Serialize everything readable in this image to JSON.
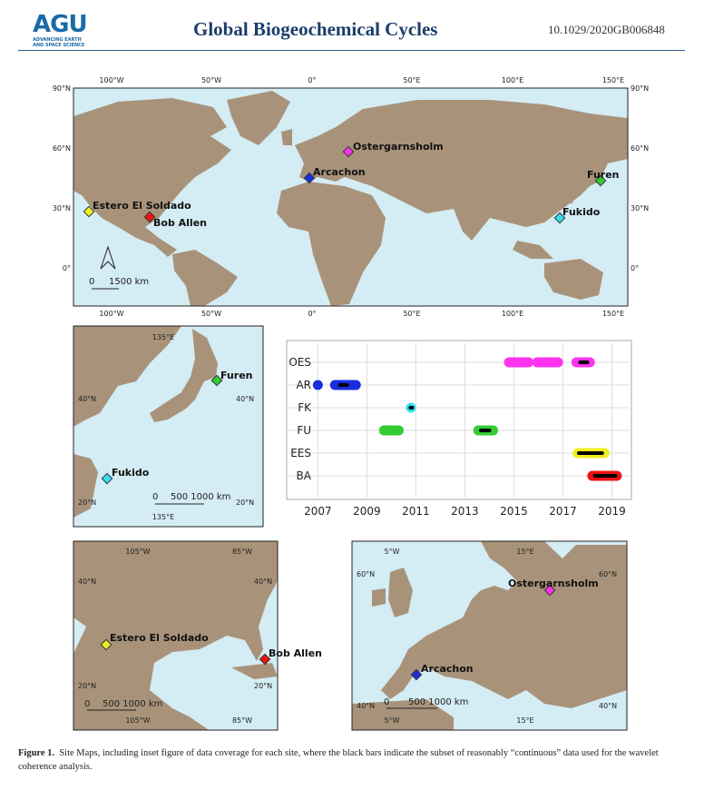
{
  "header": {
    "logo": "AGU",
    "logo_sub": "ADVANCING EARTH AND SPACE SCIENCE",
    "journal": "Global Biogeochemical Cycles",
    "doi": "10.1029/2020GB006848"
  },
  "world_map": {
    "lon_labels": [
      "100°W",
      "50°W",
      "0°",
      "50°E",
      "100°E",
      "150°E"
    ],
    "lat_labels": [
      "90°N",
      "60°N",
      "30°N",
      "0°"
    ],
    "sites": [
      "Ostergarnsholm",
      "Arcachon",
      "Furen",
      "Fukido",
      "Estero El Soldado",
      "Bob Allen"
    ],
    "scale_zero": "0",
    "scale": "1500 km"
  },
  "japan_map": {
    "lon_label": "135°E",
    "lat_labels": [
      "40°N",
      "20°N"
    ],
    "sites": [
      "Furen",
      "Fukido"
    ],
    "scale_zero": "0",
    "scale": "500 1000 km"
  },
  "america_map": {
    "lon_labels": [
      "105°W",
      "85°W"
    ],
    "lat_labels": [
      "40°N",
      "20°N"
    ],
    "sites": [
      "Estero El Soldado",
      "Bob Allen"
    ],
    "scale_zero": "0",
    "scale": "500 1000 km"
  },
  "europe_map": {
    "lon_labels": [
      "5°W",
      "15°E"
    ],
    "lat_labels": [
      "60°N",
      "40°N"
    ],
    "sites": [
      "Ostergarnsholm",
      "Arcachon"
    ],
    "scale_zero": "0",
    "scale": "500 1000 km"
  },
  "coverage_chart": {
    "type": "timeline",
    "xlim": [
      2006.95,
      2019.5
    ],
    "xticks": [
      2007,
      2009,
      2011,
      2013,
      2015,
      2017,
      2019
    ],
    "series": [
      {
        "name": "OES",
        "color": "#ff33ee",
        "spans": [
          [
            2014.8,
            2015.6
          ],
          [
            2015.95,
            2016.8
          ],
          [
            2017.55,
            2018.1
          ]
        ],
        "continuous": [
          [
            2017.7,
            2018.0
          ]
        ]
      },
      {
        "name": "AR",
        "color": "#1a2ee0",
        "spans": [
          [
            2007.0,
            2007.0
          ],
          [
            2007.7,
            2008.55
          ]
        ],
        "continuous": [
          [
            2007.9,
            2008.2
          ]
        ]
      },
      {
        "name": "FK",
        "color": "#33ddee",
        "spans": [
          [
            2010.8,
            2010.8
          ]
        ],
        "continuous": [
          [
            2010.78,
            2010.85
          ]
        ]
      },
      {
        "name": "FU",
        "color": "#33cc33",
        "spans": [
          [
            2009.7,
            2010.3
          ],
          [
            2013.55,
            2014.15
          ]
        ],
        "continuous": [
          [
            2013.65,
            2014.0
          ]
        ]
      },
      {
        "name": "EES",
        "color": "#eeee22",
        "spans": [
          [
            2017.6,
            2018.7
          ]
        ],
        "continuous": [
          [
            2017.65,
            2018.6
          ]
        ]
      },
      {
        "name": "BA",
        "color": "#ee1111",
        "spans": [
          [
            2018.2,
            2019.2
          ]
        ],
        "continuous": [
          [
            2018.3,
            2019.15
          ]
        ]
      }
    ]
  },
  "caption": {
    "label": "Figure 1.",
    "text": "Site Maps, including inset figure of data coverage for each site, where the black bars indicate the subset of reasonably “continuous” data used for the wavelet coherence analysis."
  }
}
